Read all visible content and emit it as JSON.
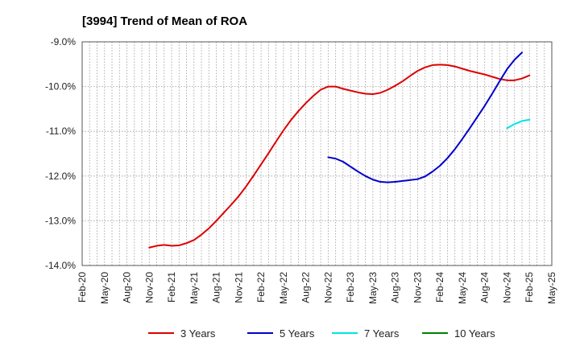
{
  "chart_data": {
    "type": "line",
    "title": "[3994]  Trend of Mean of ROA",
    "xlabel": "",
    "ylabel": "",
    "x_ticks": [
      "Feb-20",
      "May-20",
      "Aug-20",
      "Nov-20",
      "Feb-21",
      "May-21",
      "Aug-21",
      "Nov-21",
      "Feb-22",
      "May-22",
      "Aug-22",
      "Nov-22",
      "Feb-23",
      "May-23",
      "Aug-23",
      "Nov-23",
      "Feb-24",
      "May-24",
      "Aug-24",
      "Nov-24",
      "Feb-25",
      "May-25"
    ],
    "y_ticks": [
      "-9.0%",
      "-10.0%",
      "-11.0%",
      "-12.0%",
      "-13.0%",
      "-14.0%"
    ],
    "ylim": [
      -14.0,
      -9.0
    ],
    "grid": "vertical-dotted-monthly, horizontal-dotted",
    "legend_position": "bottom",
    "series": [
      {
        "name": "3 Years",
        "color": "#dd0000",
        "points": [
          [
            "2020-11",
            -13.6
          ],
          [
            "2020-12",
            -13.56
          ],
          [
            "2021-01",
            -13.54
          ],
          [
            "2021-02",
            -13.56
          ],
          [
            "2021-03",
            -13.55
          ],
          [
            "2021-04",
            -13.5
          ],
          [
            "2021-05",
            -13.43
          ],
          [
            "2021-06",
            -13.31
          ],
          [
            "2021-07",
            -13.17
          ],
          [
            "2021-08",
            -13.0
          ],
          [
            "2021-09",
            -12.82
          ],
          [
            "2021-10",
            -12.64
          ],
          [
            "2021-11",
            -12.45
          ],
          [
            "2021-12",
            -12.23
          ],
          [
            "2022-01",
            -11.99
          ],
          [
            "2022-02",
            -11.74
          ],
          [
            "2022-03",
            -11.49
          ],
          [
            "2022-04",
            -11.23
          ],
          [
            "2022-05",
            -10.98
          ],
          [
            "2022-06",
            -10.75
          ],
          [
            "2022-07",
            -10.55
          ],
          [
            "2022-08",
            -10.37
          ],
          [
            "2022-09",
            -10.21
          ],
          [
            "2022-10",
            -10.07
          ],
          [
            "2022-11",
            -10.0
          ],
          [
            "2022-12",
            -10.0
          ],
          [
            "2023-01",
            -10.05
          ],
          [
            "2023-02",
            -10.09
          ],
          [
            "2023-03",
            -10.13
          ],
          [
            "2023-04",
            -10.16
          ],
          [
            "2023-05",
            -10.17
          ],
          [
            "2023-06",
            -10.14
          ],
          [
            "2023-07",
            -10.07
          ],
          [
            "2023-08",
            -9.98
          ],
          [
            "2023-09",
            -9.88
          ],
          [
            "2023-10",
            -9.76
          ],
          [
            "2023-11",
            -9.65
          ],
          [
            "2023-12",
            -9.57
          ],
          [
            "2024-01",
            -9.52
          ],
          [
            "2024-02",
            -9.51
          ],
          [
            "2024-03",
            -9.52
          ],
          [
            "2024-04",
            -9.55
          ],
          [
            "2024-05",
            -9.6
          ],
          [
            "2024-06",
            -9.65
          ],
          [
            "2024-07",
            -9.69
          ],
          [
            "2024-08",
            -9.73
          ],
          [
            "2024-09",
            -9.78
          ],
          [
            "2024-10",
            -9.83
          ],
          [
            "2024-11",
            -9.86
          ],
          [
            "2024-12",
            -9.86
          ],
          [
            "2025-01",
            -9.82
          ],
          [
            "2025-02",
            -9.75
          ]
        ]
      },
      {
        "name": "5 Years",
        "color": "#0000cc",
        "points": [
          [
            "2022-11",
            -11.58
          ],
          [
            "2022-12",
            -11.61
          ],
          [
            "2023-01",
            -11.68
          ],
          [
            "2023-02",
            -11.79
          ],
          [
            "2023-03",
            -11.9
          ],
          [
            "2023-04",
            -12.0
          ],
          [
            "2023-05",
            -12.08
          ],
          [
            "2023-06",
            -12.13
          ],
          [
            "2023-07",
            -12.14
          ],
          [
            "2023-08",
            -12.13
          ],
          [
            "2023-09",
            -12.11
          ],
          [
            "2023-10",
            -12.09
          ],
          [
            "2023-11",
            -12.07
          ],
          [
            "2023-12",
            -12.01
          ],
          [
            "2024-01",
            -11.9
          ],
          [
            "2024-02",
            -11.77
          ],
          [
            "2024-03",
            -11.6
          ],
          [
            "2024-04",
            -11.4
          ],
          [
            "2024-05",
            -11.17
          ],
          [
            "2024-06",
            -10.93
          ],
          [
            "2024-07",
            -10.68
          ],
          [
            "2024-08",
            -10.43
          ],
          [
            "2024-09",
            -10.16
          ],
          [
            "2024-10",
            -9.88
          ],
          [
            "2024-11",
            -9.61
          ],
          [
            "2024-12",
            -9.4
          ],
          [
            "2025-01",
            -9.24
          ]
        ]
      },
      {
        "name": "7 Years",
        "color": "#00e5e5",
        "points": [
          [
            "2024-11",
            -10.93
          ],
          [
            "2024-12",
            -10.84
          ],
          [
            "2025-01",
            -10.77
          ],
          [
            "2025-02",
            -10.74
          ]
        ]
      },
      {
        "name": "10 Years",
        "color": "#008000",
        "points": []
      }
    ]
  }
}
